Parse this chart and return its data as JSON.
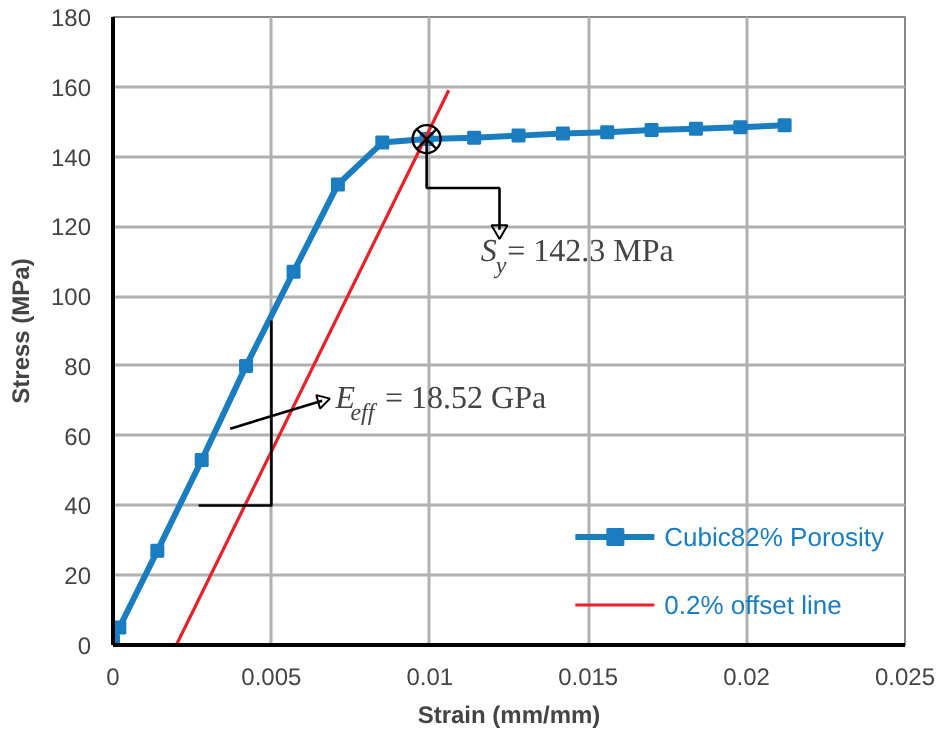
{
  "chart_data": {
    "type": "line",
    "xlabel": "Strain (mm/mm)",
    "ylabel": "Stress (MPa)",
    "xlim": [
      0,
      0.025
    ],
    "xticks": [
      0,
      0.005,
      0.01,
      0.015,
      0.02,
      0.025
    ],
    "ylim": [
      0,
      180
    ],
    "yticks": [
      0,
      20,
      40,
      60,
      80,
      100,
      120,
      140,
      160,
      180
    ],
    "grid": true,
    "legend": "bottom right",
    "series": [
      {
        "name": "Cubic82% Porosity",
        "color": "#1a7dc0",
        "marker": "square",
        "x": [
          0,
          0.0002,
          0.0014,
          0.0028,
          0.0042,
          0.0057,
          0.0071,
          0.0085,
          0.0099,
          0.0114,
          0.0128,
          0.0142,
          0.0156,
          0.017,
          0.0184,
          0.0198,
          0.0212
        ],
        "values": [
          1,
          5,
          27,
          53,
          80,
          107,
          132,
          144,
          145,
          145.4,
          146,
          146.6,
          147,
          147.6,
          148,
          148.4,
          149
        ]
      },
      {
        "name": "0.2% offset line",
        "color": "#e8202a",
        "marker": "none",
        "x": [
          0.002,
          0.0106
        ],
        "values": [
          0,
          159
        ]
      },
      {
        "color": "#000000",
        "marker": "none",
        "x": [
          0.0027,
          0.005,
          0.005
        ],
        "values": [
          40,
          40,
          93
        ]
      }
    ],
    "annotations": [
      {
        "text": "S$_{y}$= 142.3 MPa",
        "x": 0.0099,
        "y": 145
      },
      {
        "text": "E$_{eff}$ = 18.52 GPa",
        "x": 0.005,
        "y": 60
      }
    ]
  }
}
